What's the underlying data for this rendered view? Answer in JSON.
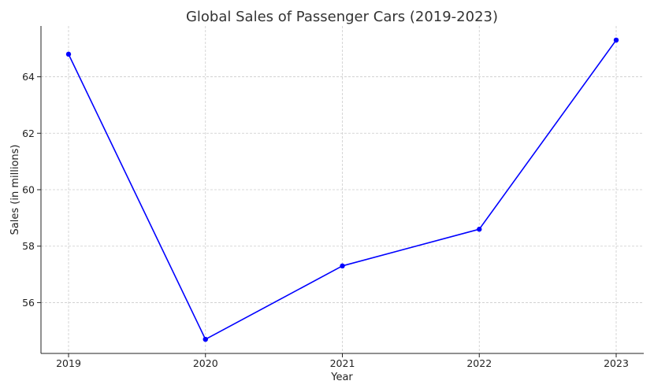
{
  "chart_data": {
    "type": "line",
    "title": "Global Sales of Passenger Cars (2019-2023)",
    "xlabel": "Year",
    "ylabel": "Sales (in millions)",
    "categories": [
      "2019",
      "2020",
      "2021",
      "2022",
      "2023"
    ],
    "series": [
      {
        "values": [
          64.8,
          54.7,
          57.3,
          58.6,
          65.3
        ],
        "color": "#0000ff"
      }
    ],
    "yticks": [
      56,
      58,
      60,
      62,
      64
    ],
    "ylim": [
      54.2,
      65.8
    ],
    "grid": true,
    "marker": "circle"
  }
}
